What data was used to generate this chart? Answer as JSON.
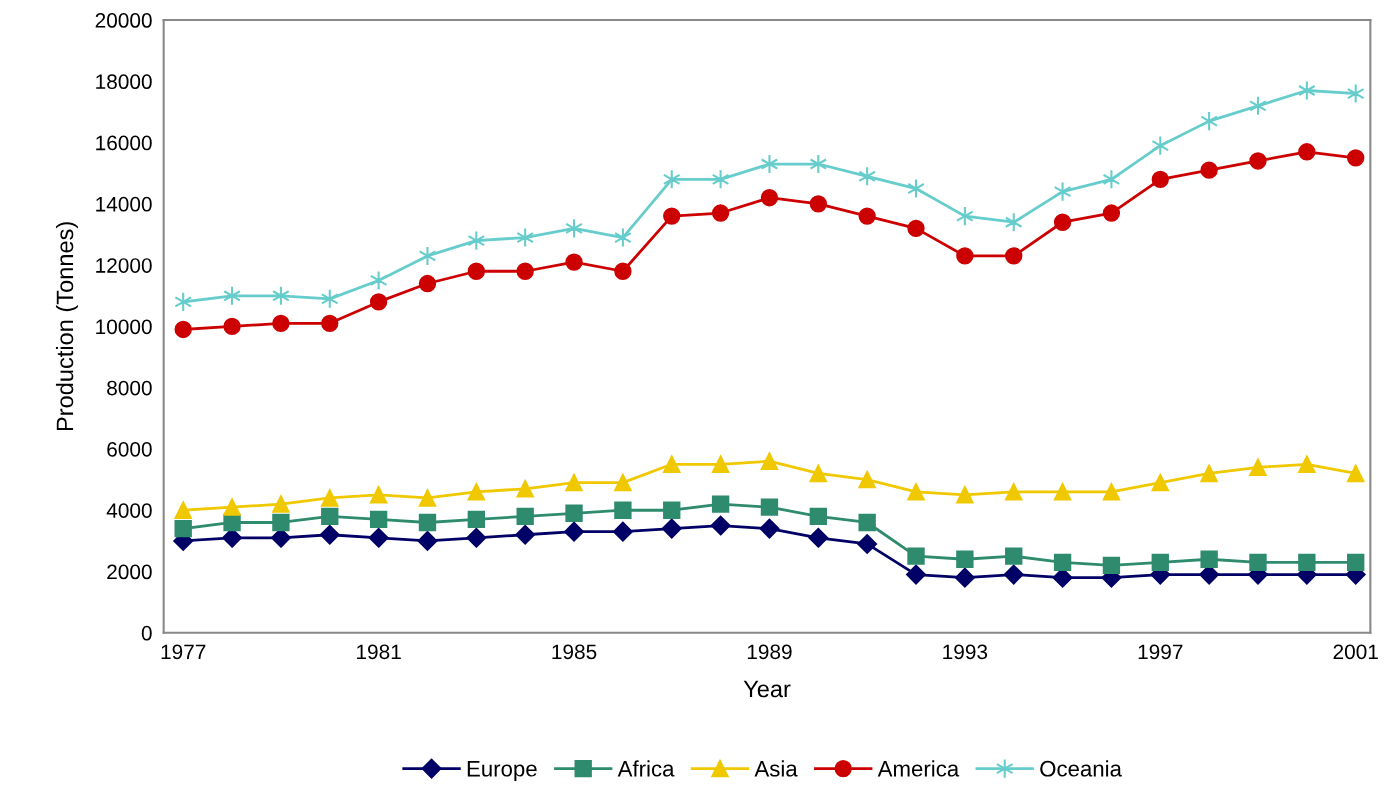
{
  "chart_data": {
    "type": "line",
    "xlabel": "Year",
    "ylabel": "Production (Tonnes)",
    "x": [
      1977,
      1978,
      1979,
      1980,
      1981,
      1982,
      1983,
      1984,
      1985,
      1986,
      1987,
      1988,
      1989,
      1990,
      1991,
      1992,
      1993,
      1994,
      1995,
      1996,
      1997,
      1998,
      1999,
      2000,
      2001
    ],
    "series": [
      {
        "name": "Europe",
        "color": "#000066",
        "marker": "diamond",
        "values": [
          3000,
          3100,
          3100,
          3200,
          3100,
          3000,
          3100,
          3200,
          3300,
          3300,
          3400,
          3500,
          3400,
          3100,
          2900,
          1900,
          1800,
          1900,
          1800,
          1800,
          1900,
          1900,
          1900,
          1900,
          1900
        ]
      },
      {
        "name": "Africa",
        "color": "#2e8b6e",
        "marker": "square",
        "values": [
          3400,
          3600,
          3600,
          3800,
          3700,
          3600,
          3700,
          3800,
          3900,
          4000,
          4000,
          4200,
          4100,
          3800,
          3600,
          2500,
          2400,
          2500,
          2300,
          2200,
          2300,
          2400,
          2300,
          2300,
          2300
        ]
      },
      {
        "name": "Asia",
        "color": "#f0c800",
        "marker": "triangle",
        "values": [
          4000,
          4100,
          4200,
          4400,
          4500,
          4400,
          4600,
          4700,
          4900,
          4900,
          5500,
          5500,
          5600,
          5200,
          5000,
          4600,
          4500,
          4600,
          4600,
          4600,
          4900,
          5200,
          5400,
          5500,
          5200
        ]
      },
      {
        "name": "America",
        "color": "#cc0000",
        "marker": "circle",
        "values": [
          9900,
          10000,
          10100,
          10100,
          10800,
          11400,
          11800,
          11800,
          12100,
          11800,
          13600,
          13700,
          14200,
          14000,
          13600,
          13200,
          12300,
          12300,
          13400,
          13700,
          14800,
          15100,
          15400,
          15700,
          15500
        ]
      },
      {
        "name": "Oceania",
        "color": "#66cccc",
        "marker": "cross",
        "values": [
          10800,
          11000,
          11000,
          10900,
          11500,
          12300,
          12800,
          12900,
          13200,
          12900,
          14800,
          14800,
          15300,
          15300,
          14900,
          14500,
          13600,
          13400,
          14400,
          14800,
          15900,
          16700,
          17200,
          17700,
          17600
        ]
      }
    ],
    "xlim": [
      1976.6,
      2001.3
    ],
    "xticks": [
      1977,
      1981,
      1985,
      1989,
      1993,
      1997,
      2001
    ],
    "ylim": [
      0,
      20000
    ],
    "yticks": [
      0,
      2000,
      4000,
      6000,
      8000,
      10000,
      12000,
      14000,
      16000,
      18000,
      20000
    ],
    "grid": false,
    "legend": "bottom",
    "line_style": "solid"
  }
}
